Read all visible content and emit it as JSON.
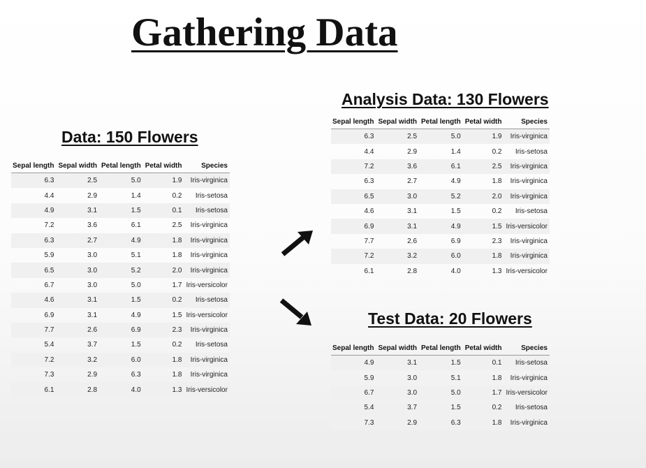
{
  "page_title": "Gathering Data",
  "columns": [
    "Sepal length",
    "Sepal width",
    "Petal length",
    "Petal width",
    "Species"
  ],
  "full_data": {
    "title": "Data: 150 Flowers",
    "rows": [
      [
        "6.3",
        "2.5",
        "5.0",
        "1.9",
        "Iris-virginica"
      ],
      [
        "4.4",
        "2.9",
        "1.4",
        "0.2",
        "Iris-setosa"
      ],
      [
        "4.9",
        "3.1",
        "1.5",
        "0.1",
        "Iris-setosa"
      ],
      [
        "7.2",
        "3.6",
        "6.1",
        "2.5",
        "Iris-virginica"
      ],
      [
        "6.3",
        "2.7",
        "4.9",
        "1.8",
        "Iris-virginica"
      ],
      [
        "5.9",
        "3.0",
        "5.1",
        "1.8",
        "Iris-virginica"
      ],
      [
        "6.5",
        "3.0",
        "5.2",
        "2.0",
        "Iris-virginica"
      ],
      [
        "6.7",
        "3.0",
        "5.0",
        "1.7",
        "Iris-versicolor"
      ],
      [
        "4.6",
        "3.1",
        "1.5",
        "0.2",
        "Iris-setosa"
      ],
      [
        "6.9",
        "3.1",
        "4.9",
        "1.5",
        "Iris-versicolor"
      ],
      [
        "7.7",
        "2.6",
        "6.9",
        "2.3",
        "Iris-virginica"
      ],
      [
        "5.4",
        "3.7",
        "1.5",
        "0.2",
        "Iris-setosa"
      ],
      [
        "7.2",
        "3.2",
        "6.0",
        "1.8",
        "Iris-virginica"
      ],
      [
        "7.3",
        "2.9",
        "6.3",
        "1.8",
        "Iris-virginica"
      ],
      [
        "6.1",
        "2.8",
        "4.0",
        "1.3",
        "Iris-versicolor"
      ]
    ]
  },
  "analysis_data": {
    "title": "Analysis Data: 130 Flowers",
    "rows": [
      [
        "6.3",
        "2.5",
        "5.0",
        "1.9",
        "Iris-virginica"
      ],
      [
        "4.4",
        "2.9",
        "1.4",
        "0.2",
        "Iris-setosa"
      ],
      [
        "7.2",
        "3.6",
        "6.1",
        "2.5",
        "Iris-virginica"
      ],
      [
        "6.3",
        "2.7",
        "4.9",
        "1.8",
        "Iris-virginica"
      ],
      [
        "6.5",
        "3.0",
        "5.2",
        "2.0",
        "Iris-virginica"
      ],
      [
        "4.6",
        "3.1",
        "1.5",
        "0.2",
        "Iris-setosa"
      ],
      [
        "6.9",
        "3.1",
        "4.9",
        "1.5",
        "Iris-versicolor"
      ],
      [
        "7.7",
        "2.6",
        "6.9",
        "2.3",
        "Iris-virginica"
      ],
      [
        "7.2",
        "3.2",
        "6.0",
        "1.8",
        "Iris-virginica"
      ],
      [
        "6.1",
        "2.8",
        "4.0",
        "1.3",
        "Iris-versicolor"
      ]
    ]
  },
  "test_data": {
    "title": "Test Data: 20 Flowers",
    "rows": [
      [
        "4.9",
        "3.1",
        "1.5",
        "0.1",
        "Iris-setosa"
      ],
      [
        "5.9",
        "3.0",
        "5.1",
        "1.8",
        "Iris-virginica"
      ],
      [
        "6.7",
        "3.0",
        "5.0",
        "1.7",
        "Iris-versicolor"
      ],
      [
        "5.4",
        "3.7",
        "1.5",
        "0.2",
        "Iris-setosa"
      ],
      [
        "7.3",
        "2.9",
        "6.3",
        "1.8",
        "Iris-virginica"
      ]
    ]
  },
  "arrows": [
    "arrow-up-right-icon",
    "arrow-down-right-icon"
  ]
}
